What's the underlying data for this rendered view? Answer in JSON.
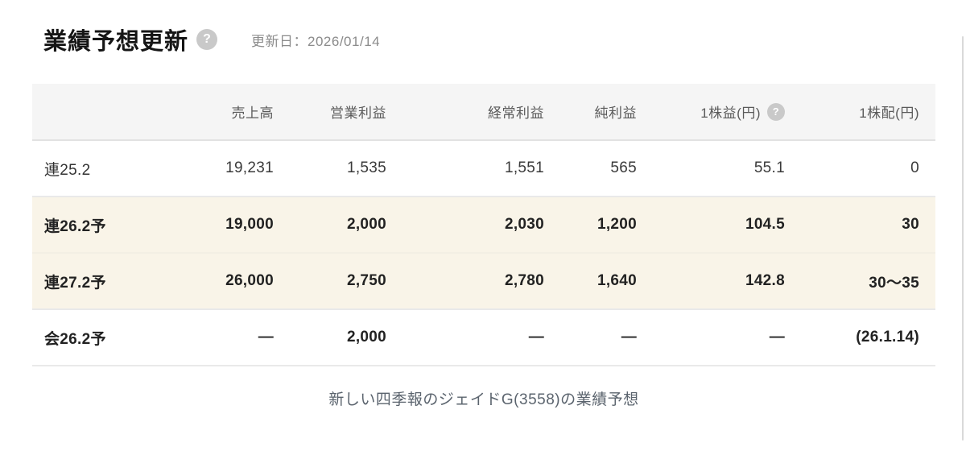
{
  "header": {
    "title": "業績予想更新",
    "updated": "更新日：2026/01/14"
  },
  "icons": {
    "help_glyph": "?"
  },
  "table": {
    "columns": [
      "",
      "売上高",
      "営業利益",
      "経常利益",
      "純利益",
      "1株益(円)",
      "1株配(円)"
    ],
    "rows": [
      {
        "label": "連25.2",
        "values": [
          "19,231",
          "1,535",
          "1,551",
          "565",
          "55.1",
          "0"
        ]
      },
      {
        "label": "連26.2予",
        "values": [
          "19,000",
          "2,000",
          "2,030",
          "1,200",
          "104.5",
          "30"
        ]
      },
      {
        "label": "連27.2予",
        "values": [
          "26,000",
          "2,750",
          "2,780",
          "1,640",
          "142.8",
          "30〜35"
        ]
      },
      {
        "label": "会26.2予",
        "values": [
          "—",
          "2,000",
          "—",
          "—",
          "—",
          "(26.1.14)"
        ]
      }
    ]
  },
  "footer": {
    "caption": "新しい四季報のジェイドG(3558)の業績予想"
  },
  "colors": {
    "highlight_row": "#f9f4e8",
    "header_row": "#f5f5f5",
    "help_icon": "#c9c9c9",
    "row_border": "#e9e9e9",
    "muted_text": "#8b8b8b",
    "caption_text": "#5b646e"
  }
}
